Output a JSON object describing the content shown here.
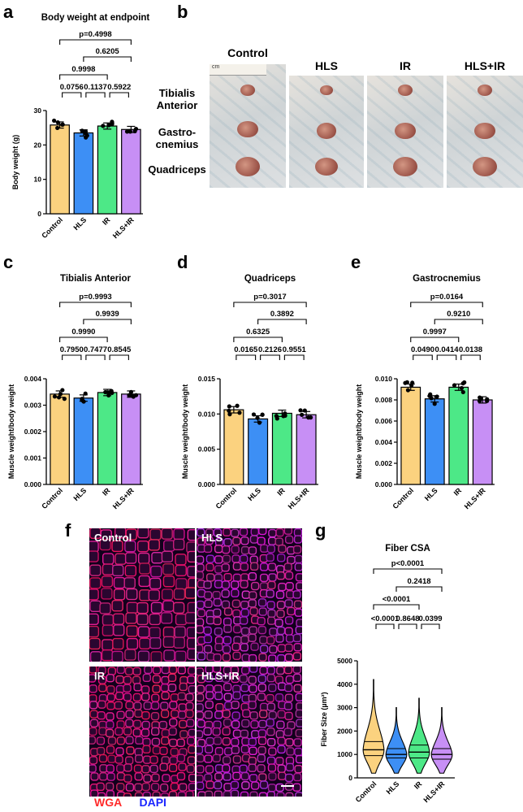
{
  "colors": {
    "control": "#fbd27f",
    "hls": "#3d8ff5",
    "ir": "#4de887",
    "hlsir": "#c78ff5",
    "wga": "#ff2a2a",
    "dapi": "#1b25ff"
  },
  "panels": {
    "a": "a",
    "b": "b",
    "c": "c",
    "d": "d",
    "e": "e",
    "f": "f",
    "g": "g"
  },
  "photos": {
    "groups": [
      "Control",
      "HLS",
      "IR",
      "HLS+IR"
    ],
    "muscles": [
      "Tibialis\nAnterior",
      "Gastro-\ncnemius",
      "Quadriceps"
    ],
    "muscle_line1": [
      "Tibialis",
      "Gastro-",
      "Quadriceps"
    ],
    "muscle_line2": [
      "Anterior",
      "cnemius",
      ""
    ],
    "ruler_text": "cm"
  },
  "micro": {
    "labels": [
      "Control",
      "HLS",
      "IR",
      "HLS+IR"
    ],
    "stain1": "WGA",
    "stain2": "DAPI"
  },
  "chart_data": [
    {
      "id": "a",
      "type": "bar",
      "title": "Body weight at endpoint",
      "ylabel": "Body weight (g)",
      "categories": [
        "Control",
        "HLS",
        "IR",
        "HLS+IR"
      ],
      "values": [
        25.8,
        23.5,
        25.5,
        24.5
      ],
      "ylim": [
        0,
        30
      ],
      "yticks": [
        "0",
        "10",
        "20",
        "30"
      ],
      "comparisons": [
        {
          "label": "p=0.4998",
          "from": 0,
          "to": 3
        },
        {
          "label": "0.6205",
          "from": 1,
          "to": 3
        },
        {
          "label": "0.9998",
          "from": 0,
          "to": 2
        },
        {
          "label": "0.0756",
          "from": 0,
          "to": 1
        },
        {
          "label": "0.1137",
          "from": 1,
          "to": 2
        },
        {
          "label": "0.5922",
          "from": 2,
          "to": 3
        }
      ]
    },
    {
      "id": "c",
      "type": "bar",
      "title": "Tibialis Anterior",
      "ylabel": "Muscle weight/body weight",
      "categories": [
        "Control",
        "HLS",
        "IR",
        "HLS+IR"
      ],
      "values": [
        0.00342,
        0.00327,
        0.00348,
        0.00342
      ],
      "ylim": [
        0,
        0.004
      ],
      "yticks": [
        "0.000",
        "0.001",
        "0.002",
        "0.003",
        "0.004"
      ],
      "comparisons": [
        {
          "label": "p=0.9993",
          "from": 0,
          "to": 3
        },
        {
          "label": "0.9939",
          "from": 1,
          "to": 3
        },
        {
          "label": "0.9990",
          "from": 0,
          "to": 2
        },
        {
          "label": "0.7950",
          "from": 0,
          "to": 1
        },
        {
          "label": "0.7477",
          "from": 1,
          "to": 2
        },
        {
          "label": "0.8545",
          "from": 2,
          "to": 3
        }
      ]
    },
    {
      "id": "d",
      "type": "bar",
      "title": "Quadriceps",
      "ylabel": "Muscle weight/body weight",
      "categories": [
        "Control",
        "HLS",
        "IR",
        "HLS+IR"
      ],
      "values": [
        0.0106,
        0.0093,
        0.0101,
        0.0099
      ],
      "ylim": [
        0,
        0.015
      ],
      "yticks": [
        "0.000",
        "0.005",
        "0.010",
        "0.015"
      ],
      "comparisons": [
        {
          "label": "p=0.3017",
          "from": 0,
          "to": 3
        },
        {
          "label": "0.3892",
          "from": 1,
          "to": 3
        },
        {
          "label": "0.6325",
          "from": 0,
          "to": 2
        },
        {
          "label": "0.0165",
          "from": 0,
          "to": 1
        },
        {
          "label": "0.2126",
          "from": 1,
          "to": 2
        },
        {
          "label": "0.9551",
          "from": 2,
          "to": 3
        }
      ]
    },
    {
      "id": "e",
      "type": "bar",
      "title": "Gastrocnemius",
      "ylabel": "Muscle weight/body weight",
      "categories": [
        "Control",
        "HLS",
        "IR",
        "HLS+IR"
      ],
      "values": [
        0.0092,
        0.0081,
        0.0092,
        0.008
      ],
      "ylim": [
        0,
        0.01
      ],
      "yticks": [
        "0.000",
        "0.002",
        "0.004",
        "0.006",
        "0.008",
        "0.010"
      ],
      "comparisons": [
        {
          "label": "p=0.0164",
          "from": 0,
          "to": 3
        },
        {
          "label": "0.9210",
          "from": 1,
          "to": 3
        },
        {
          "label": "0.9997",
          "from": 0,
          "to": 2
        },
        {
          "label": "0.0490",
          "from": 0,
          "to": 1
        },
        {
          "label": "0.0414",
          "from": 1,
          "to": 2
        },
        {
          "label": "0.0138",
          "from": 2,
          "to": 3
        }
      ]
    },
    {
      "id": "g",
      "type": "violin",
      "title": "Fiber CSA",
      "ylabel": "Fiber Size (µm²)",
      "categories": [
        "Control",
        "HLS",
        "IR",
        "HLS+IR"
      ],
      "median": [
        1200,
        1000,
        1100,
        1000
      ],
      "q1": [
        950,
        850,
        850,
        800
      ],
      "q3": [
        1550,
        1250,
        1400,
        1250
      ],
      "min": [
        200,
        200,
        200,
        200
      ],
      "max": [
        4200,
        3000,
        3400,
        3000
      ],
      "ylim": [
        0,
        5000
      ],
      "yticks": [
        "0",
        "1000",
        "2000",
        "3000",
        "4000",
        "5000"
      ],
      "comparisons": [
        {
          "label": "p<0.0001",
          "from": 0,
          "to": 3
        },
        {
          "label": "0.2418",
          "from": 1,
          "to": 3
        },
        {
          "label": "<0.0001",
          "from": 0,
          "to": 2
        },
        {
          "label": "<0.0001",
          "from": 0,
          "to": 1
        },
        {
          "label": "0.8648",
          "from": 1,
          "to": 2
        },
        {
          "label": "0.0399",
          "from": 2,
          "to": 3
        }
      ]
    }
  ]
}
